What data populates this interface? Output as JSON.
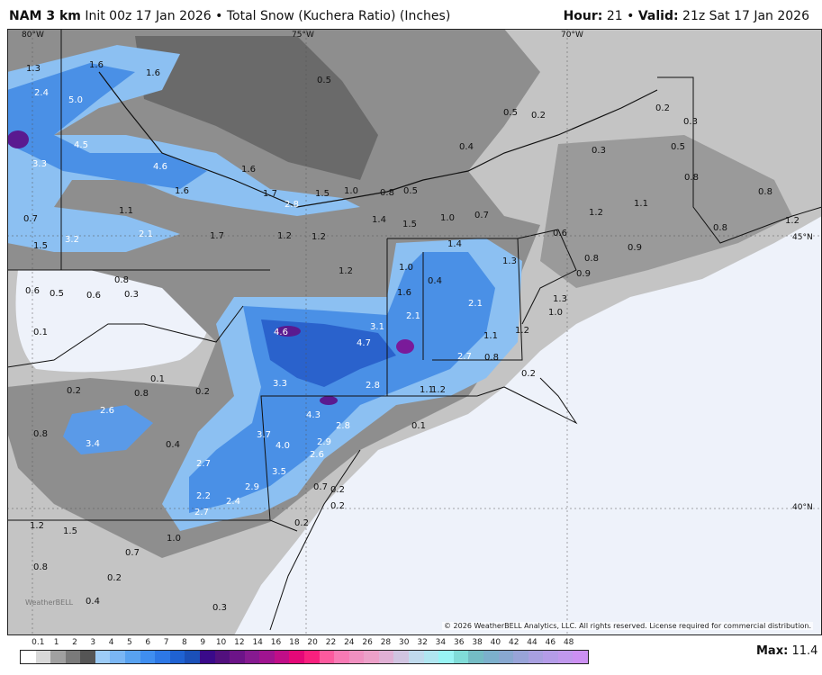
{
  "header": {
    "model": "NAM 3 km",
    "init": "Init 00z 17 Jan 2026",
    "sep": "•",
    "product": "Total Snow (Kuchera Ratio) (Inches)",
    "hour_label": "Hour:",
    "hour": "21",
    "valid_label": "Valid:",
    "valid": "21z Sat 17 Jan 2026"
  },
  "map": {
    "gridlines": [
      "80°W",
      "75°W",
      "70°W",
      "45°N",
      "40°N"
    ],
    "watermark": "WeatherBELL",
    "copyright": "© 2026 WeatherBELL Analytics, LLC. All rights reserved. License required for commercial distribution.",
    "colors": {
      "ocean": "#eef2fa",
      "light_gray": "#c4c4c4",
      "gray": "#8e8e8e",
      "dark_gray": "#6a6a6a",
      "light_blue": "#8cc0f2",
      "blue": "#4a90e6",
      "dark_blue": "#2a62cc",
      "purple": "#5a1a90"
    },
    "values": [
      "1.3",
      "1.6",
      "1.6",
      "2.4",
      "5.0",
      "0.5",
      "0.5",
      "0.2",
      "4.5",
      "4.6",
      "1.6",
      "3.3",
      "0.4",
      "0.3",
      "0.5",
      "0.3",
      "0.2",
      "1.6",
      "1.7",
      "2.8",
      "1.5",
      "1.0",
      "0.8",
      "0.5",
      "1.1",
      "0.7",
      "1.5",
      "3.2",
      "2.1",
      "1.7",
      "1.2",
      "1.2",
      "1.4",
      "1.5",
      "1.0",
      "0.7",
      "0.8",
      "0.8",
      "1.2",
      "1.1",
      "0.8",
      "1.2",
      "0.6",
      "0.9",
      "1.4",
      "1.3",
      "1.2",
      "1.0",
      "0.4",
      "1.6",
      "2.1",
      "2.1",
      "4.6",
      "3.1",
      "4.7",
      "1.1",
      "1.2",
      "2.7",
      "0.8",
      "0.2",
      "3.3",
      "2.8",
      "1.1",
      "1.2",
      "4.3",
      "2.8",
      "0.1",
      "3.7",
      "4.0",
      "2.9",
      "2.6",
      "2.6",
      "3.4",
      "0.8",
      "0.4",
      "2.7",
      "3.5",
      "2.9",
      "2.2",
      "2.4",
      "2.7",
      "0.7",
      "0.2",
      "0.2",
      "1.2",
      "1.5",
      "1.0",
      "0.7",
      "0.8",
      "0.2",
      "0.4",
      "0.3",
      "0.2",
      "0.1",
      "0.2",
      "0.8",
      "0.2",
      "0.1",
      "0.6",
      "0.5",
      "0.6",
      "0.3",
      "0.8",
      "1.3",
      "1.0",
      "0.9",
      "0.8"
    ]
  },
  "legend": {
    "labels": [
      "0.1",
      "1",
      "2",
      "3",
      "4",
      "5",
      "6",
      "7",
      "8",
      "9",
      "10",
      "12",
      "14",
      "16",
      "18",
      "20",
      "22",
      "24",
      "26",
      "28",
      "30",
      "32",
      "34",
      "36",
      "38",
      "40",
      "42",
      "44",
      "46",
      "48"
    ],
    "colors": [
      "#ffffff",
      "#d8d8d8",
      "#a0a0a0",
      "#7a7a7a",
      "#555555",
      "#9ccbf6",
      "#7ab6f4",
      "#58a2f0",
      "#3f8ef0",
      "#2d78e6",
      "#1f62d2",
      "#1b50b8",
      "#3a0a8a",
      "#52107e",
      "#6c1488",
      "#861a90",
      "#a01490",
      "#c00e88",
      "#e40878",
      "#f8207e",
      "#fc5a9e",
      "#f87ab4",
      "#f090c0",
      "#eca0c8",
      "#e0b0d4",
      "#d0c4e0",
      "#c0daec",
      "#b0e6f0",
      "#98f4f4",
      "#80dcd8",
      "#74bcc4",
      "#7cb0cc",
      "#88a8d0",
      "#98a4d8",
      "#a8a0e0",
      "#b49ce8",
      "#c098ec",
      "#cc90f2"
    ],
    "max_label": "Max:",
    "max_value": "11.4"
  }
}
